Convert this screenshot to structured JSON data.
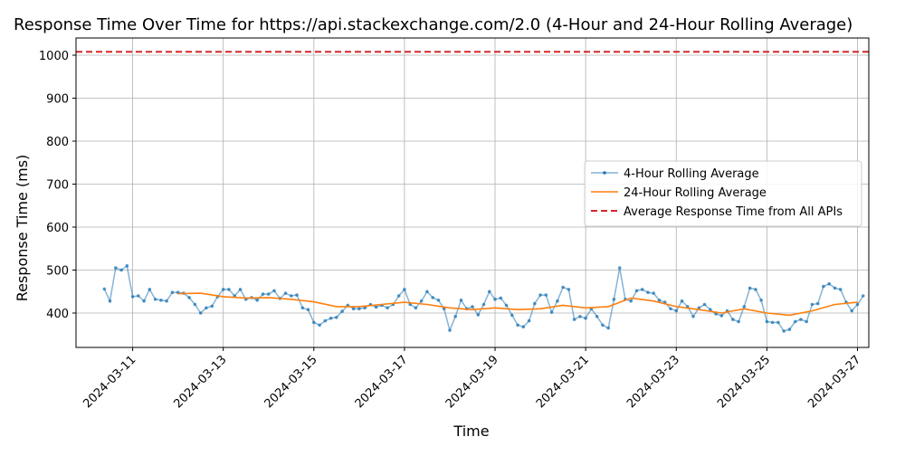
{
  "chart_data": {
    "type": "line",
    "title": "Response Time Over Time for https://api.stackexchange.com/2.0 (4-Hour and 24-Hour Rolling Average)",
    "xlabel": "Time",
    "ylabel": "Response Time (ms)",
    "x_axis": {
      "type": "date",
      "min": "2024-03-09T18:00",
      "max": "2024-03-27T06:00",
      "ticks": [
        "2024-03-11",
        "2024-03-13",
        "2024-03-15",
        "2024-03-17",
        "2024-03-19",
        "2024-03-21",
        "2024-03-23",
        "2024-03-25",
        "2024-03-27"
      ]
    },
    "y_axis": {
      "min": 320,
      "max": 1040,
      "ticks": [
        400,
        500,
        600,
        700,
        800,
        900,
        1000
      ]
    },
    "grid": true,
    "legend_position": "center-right",
    "series": [
      {
        "name": "4-Hour Rolling Average",
        "color": "#1f77b4",
        "style": "line-with-dots",
        "points": [
          [
            "2024-03-10T09:00",
            456
          ],
          [
            "2024-03-10T12:00",
            428
          ],
          [
            "2024-03-10T15:00",
            505
          ],
          [
            "2024-03-10T18:00",
            500
          ],
          [
            "2024-03-10T21:00",
            510
          ],
          [
            "2024-03-11T00:00",
            438
          ],
          [
            "2024-03-11T03:00",
            440
          ],
          [
            "2024-03-11T06:00",
            428
          ],
          [
            "2024-03-11T09:00",
            455
          ],
          [
            "2024-03-11T12:00",
            432
          ],
          [
            "2024-03-11T15:00",
            430
          ],
          [
            "2024-03-11T18:00",
            428
          ],
          [
            "2024-03-11T21:00",
            448
          ],
          [
            "2024-03-12T00:00",
            448
          ],
          [
            "2024-03-12T03:00",
            446
          ],
          [
            "2024-03-12T06:00",
            436
          ],
          [
            "2024-03-12T09:00",
            420
          ],
          [
            "2024-03-12T12:00",
            400
          ],
          [
            "2024-03-12T15:00",
            412
          ],
          [
            "2024-03-12T18:00",
            416
          ],
          [
            "2024-03-12T21:00",
            438
          ],
          [
            "2024-03-13T00:00",
            455
          ],
          [
            "2024-03-13T03:00",
            455
          ],
          [
            "2024-03-13T06:00",
            440
          ],
          [
            "2024-03-13T09:00",
            455
          ],
          [
            "2024-03-13T12:00",
            432
          ],
          [
            "2024-03-13T15:00",
            436
          ],
          [
            "2024-03-13T18:00",
            430
          ],
          [
            "2024-03-13T21:00",
            444
          ],
          [
            "2024-03-14T00:00",
            444
          ],
          [
            "2024-03-14T03:00",
            452
          ],
          [
            "2024-03-14T06:00",
            434
          ],
          [
            "2024-03-14T09:00",
            446
          ],
          [
            "2024-03-14T12:00",
            440
          ],
          [
            "2024-03-14T15:00",
            442
          ],
          [
            "2024-03-14T18:00",
            412
          ],
          [
            "2024-03-14T21:00",
            408
          ],
          [
            "2024-03-15T00:00",
            378
          ],
          [
            "2024-03-15T03:00",
            372
          ],
          [
            "2024-03-15T06:00",
            382
          ],
          [
            "2024-03-15T09:00",
            388
          ],
          [
            "2024-03-15T12:00",
            390
          ],
          [
            "2024-03-15T15:00",
            404
          ],
          [
            "2024-03-15T18:00",
            418
          ],
          [
            "2024-03-15T21:00",
            410
          ],
          [
            "2024-03-16T00:00",
            410
          ],
          [
            "2024-03-16T03:00",
            412
          ],
          [
            "2024-03-16T06:00",
            420
          ],
          [
            "2024-03-16T09:00",
            414
          ],
          [
            "2024-03-16T12:00",
            418
          ],
          [
            "2024-03-16T15:00",
            412
          ],
          [
            "2024-03-16T18:00",
            420
          ],
          [
            "2024-03-16T21:00",
            440
          ],
          [
            "2024-03-17T00:00",
            455
          ],
          [
            "2024-03-17T03:00",
            420
          ],
          [
            "2024-03-17T06:00",
            412
          ],
          [
            "2024-03-17T09:00",
            428
          ],
          [
            "2024-03-17T12:00",
            450
          ],
          [
            "2024-03-17T15:00",
            436
          ],
          [
            "2024-03-17T18:00",
            430
          ],
          [
            "2024-03-17T21:00",
            410
          ],
          [
            "2024-03-18T00:00",
            360
          ],
          [
            "2024-03-18T03:00",
            392
          ],
          [
            "2024-03-18T06:00",
            430
          ],
          [
            "2024-03-18T09:00",
            410
          ],
          [
            "2024-03-18T12:00",
            415
          ],
          [
            "2024-03-18T15:00",
            396
          ],
          [
            "2024-03-18T18:00",
            420
          ],
          [
            "2024-03-18T21:00",
            450
          ],
          [
            "2024-03-19T00:00",
            432
          ],
          [
            "2024-03-19T03:00",
            435
          ],
          [
            "2024-03-19T06:00",
            418
          ],
          [
            "2024-03-19T09:00",
            395
          ],
          [
            "2024-03-19T12:00",
            372
          ],
          [
            "2024-03-19T15:00",
            368
          ],
          [
            "2024-03-19T18:00",
            382
          ],
          [
            "2024-03-19T21:00",
            422
          ],
          [
            "2024-03-20T00:00",
            442
          ],
          [
            "2024-03-20T03:00",
            442
          ],
          [
            "2024-03-20T06:00",
            402
          ],
          [
            "2024-03-20T09:00",
            428
          ],
          [
            "2024-03-20T12:00",
            460
          ],
          [
            "2024-03-20T15:00",
            455
          ],
          [
            "2024-03-20T18:00",
            385
          ],
          [
            "2024-03-20T21:00",
            392
          ],
          [
            "2024-03-21T00:00",
            388
          ],
          [
            "2024-03-21T03:00",
            410
          ],
          [
            "2024-03-21T06:00",
            392
          ],
          [
            "2024-03-21T09:00",
            372
          ],
          [
            "2024-03-21T12:00",
            365
          ],
          [
            "2024-03-21T15:00",
            432
          ],
          [
            "2024-03-21T18:00",
            505
          ],
          [
            "2024-03-21T21:00",
            432
          ],
          [
            "2024-03-22T00:00",
            428
          ],
          [
            "2024-03-22T03:00",
            452
          ],
          [
            "2024-03-22T06:00",
            455
          ],
          [
            "2024-03-22T09:00",
            448
          ],
          [
            "2024-03-22T12:00",
            446
          ],
          [
            "2024-03-22T15:00",
            430
          ],
          [
            "2024-03-22T18:00",
            425
          ],
          [
            "2024-03-22T21:00",
            410
          ],
          [
            "2024-03-23T00:00",
            405
          ],
          [
            "2024-03-23T03:00",
            428
          ],
          [
            "2024-03-23T06:00",
            415
          ],
          [
            "2024-03-23T09:00",
            392
          ],
          [
            "2024-03-23T12:00",
            412
          ],
          [
            "2024-03-23T15:00",
            420
          ],
          [
            "2024-03-23T18:00",
            408
          ],
          [
            "2024-03-23T21:00",
            398
          ],
          [
            "2024-03-24T00:00",
            394
          ],
          [
            "2024-03-24T03:00",
            405
          ],
          [
            "2024-03-24T06:00",
            385
          ],
          [
            "2024-03-24T09:00",
            380
          ],
          [
            "2024-03-24T12:00",
            415
          ],
          [
            "2024-03-24T15:00",
            458
          ],
          [
            "2024-03-24T18:00",
            455
          ],
          [
            "2024-03-24T21:00",
            430
          ],
          [
            "2024-03-25T00:00",
            380
          ],
          [
            "2024-03-25T03:00",
            378
          ],
          [
            "2024-03-25T06:00",
            378
          ],
          [
            "2024-03-25T09:00",
            358
          ],
          [
            "2024-03-25T12:00",
            362
          ],
          [
            "2024-03-25T15:00",
            380
          ],
          [
            "2024-03-25T18:00",
            385
          ],
          [
            "2024-03-25T21:00",
            380
          ],
          [
            "2024-03-26T00:00",
            420
          ],
          [
            "2024-03-26T03:00",
            422
          ],
          [
            "2024-03-26T06:00",
            462
          ],
          [
            "2024-03-26T09:00",
            468
          ],
          [
            "2024-03-26T12:00",
            458
          ],
          [
            "2024-03-26T15:00",
            455
          ],
          [
            "2024-03-26T18:00",
            425
          ],
          [
            "2024-03-26T21:00",
            405
          ],
          [
            "2024-03-27T00:00",
            420
          ],
          [
            "2024-03-27T03:00",
            440
          ]
        ]
      },
      {
        "name": "24-Hour Rolling Average",
        "color": "#ff7f0e",
        "style": "line",
        "points": [
          [
            "2024-03-12T00:00",
            445
          ],
          [
            "2024-03-12T12:00",
            446
          ],
          [
            "2024-03-13T00:00",
            438
          ],
          [
            "2024-03-13T12:00",
            435
          ],
          [
            "2024-03-14T00:00",
            436
          ],
          [
            "2024-03-14T12:00",
            432
          ],
          [
            "2024-03-15T00:00",
            426
          ],
          [
            "2024-03-15T12:00",
            415
          ],
          [
            "2024-03-16T00:00",
            415
          ],
          [
            "2024-03-16T12:00",
            420
          ],
          [
            "2024-03-17T00:00",
            425
          ],
          [
            "2024-03-17T12:00",
            420
          ],
          [
            "2024-03-18T00:00",
            412
          ],
          [
            "2024-03-18T12:00",
            408
          ],
          [
            "2024-03-19T00:00",
            412
          ],
          [
            "2024-03-19T12:00",
            408
          ],
          [
            "2024-03-20T00:00",
            410
          ],
          [
            "2024-03-20T12:00",
            418
          ],
          [
            "2024-03-21T00:00",
            412
          ],
          [
            "2024-03-21T12:00",
            415
          ],
          [
            "2024-03-22T00:00",
            435
          ],
          [
            "2024-03-22T12:00",
            428
          ],
          [
            "2024-03-23T00:00",
            415
          ],
          [
            "2024-03-23T12:00",
            408
          ],
          [
            "2024-03-24T00:00",
            400
          ],
          [
            "2024-03-24T12:00",
            410
          ],
          [
            "2024-03-25T00:00",
            400
          ],
          [
            "2024-03-25T12:00",
            395
          ],
          [
            "2024-03-26T00:00",
            405
          ],
          [
            "2024-03-26T12:00",
            420
          ],
          [
            "2024-03-27T00:00",
            425
          ]
        ]
      },
      {
        "name": "Average Response Time from All APIs",
        "color": "#d62728",
        "style": "dashed-hline",
        "value": 1008
      }
    ]
  }
}
